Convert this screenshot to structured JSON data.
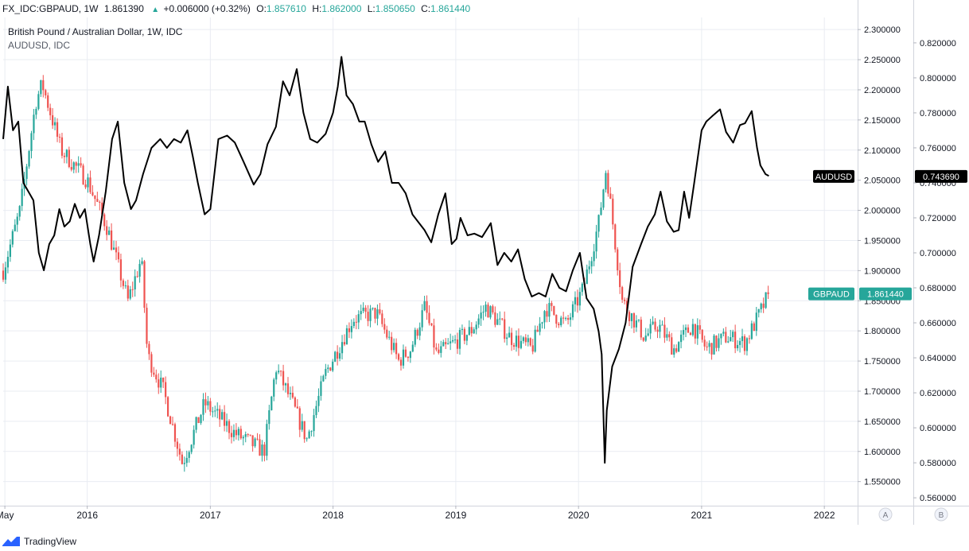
{
  "header": {
    "symbol_line": "FX_IDC:GBPAUD, 1W",
    "last": "1.861390",
    "change": "+0.006000 (+0.32%)",
    "open_label": "O:",
    "open": "1.857610",
    "high_label": "H:",
    "high": "1.862000",
    "low_label": "L:",
    "low": "1.850650",
    "close_label": "C:",
    "close": "1.861440"
  },
  "legend": {
    "main_series": "British Pound / Australian Dollar, 1W, IDC",
    "overlay_series": "AUDUSD, IDC"
  },
  "footer": {
    "brand": "TradingView"
  },
  "scale_buttons": [
    "A",
    "B"
  ],
  "colors": {
    "up": "#26a69a",
    "down": "#ef5350",
    "overlay": "#000000",
    "grid": "#e9ecf2",
    "axis_text": "#131722"
  },
  "chart_data": {
    "type": "candlestick+line",
    "x_ticks": [
      "May",
      "2016",
      "2017",
      "2018",
      "2019",
      "2020",
      "2021",
      "2022"
    ],
    "x_tick_dates": [
      "2015-05-01",
      "2016-01-01",
      "2017-01-01",
      "2018-01-01",
      "2019-01-01",
      "2020-01-01",
      "2021-01-01",
      "2022-01-01"
    ],
    "xlim": [
      "2015-04-26",
      "2022-04-10"
    ],
    "series": [
      {
        "name": "GBPAUD",
        "axis": "left-scale",
        "price_label": "1.861440",
        "ylim": [
          1.51,
          2.32
        ],
        "y_ticks": [
          "2.300000",
          "2.250000",
          "2.200000",
          "2.150000",
          "2.100000",
          "2.050000",
          "2.000000",
          "1.950000",
          "1.900000",
          "1.850000",
          "1.800000",
          "1.750000",
          "1.700000",
          "1.650000",
          "1.600000",
          "1.550000"
        ],
        "y_tick_values": [
          2.3,
          2.25,
          2.2,
          2.15,
          2.1,
          2.05,
          2.0,
          1.95,
          1.9,
          1.85,
          1.8,
          1.75,
          1.7,
          1.65,
          1.6,
          1.55
        ],
        "anchor_dates": [
          "2015-04-26",
          "2015-06-15",
          "2015-08-01",
          "2015-08-20",
          "2015-10-15",
          "2016-01-01",
          "2016-03-01",
          "2016-05-01",
          "2016-06-10",
          "2016-06-28",
          "2016-08-15",
          "2016-10-10",
          "2016-12-15",
          "2017-03-15",
          "2017-06-10",
          "2017-07-15",
          "2017-09-01",
          "2017-10-15",
          "2017-12-10",
          "2018-03-01",
          "2018-05-10",
          "2018-07-15",
          "2018-08-20",
          "2018-10-01",
          "2018-11-05",
          "2018-12-25",
          "2019-02-15",
          "2019-04-01",
          "2019-06-10",
          "2019-08-15",
          "2019-09-25",
          "2019-11-25",
          "2020-01-15",
          "2020-03-01",
          "2020-03-23",
          "2020-05-10",
          "2020-07-15",
          "2020-08-25",
          "2020-10-10",
          "2020-12-05",
          "2021-01-15",
          "2021-03-15",
          "2021-05-10",
          "2021-06-15",
          "2021-07-20"
        ],
        "anchor_values": [
          1.9,
          2.0,
          2.18,
          2.21,
          2.1,
          2.05,
          1.97,
          1.85,
          1.92,
          1.76,
          1.7,
          1.58,
          1.68,
          1.63,
          1.6,
          1.74,
          1.68,
          1.62,
          1.73,
          1.82,
          1.83,
          1.75,
          1.77,
          1.84,
          1.76,
          1.78,
          1.8,
          1.84,
          1.79,
          1.77,
          1.84,
          1.81,
          1.87,
          1.98,
          2.07,
          1.85,
          1.79,
          1.81,
          1.77,
          1.81,
          1.77,
          1.79,
          1.78,
          1.82,
          1.861
        ]
      },
      {
        "name": "AUDUSD",
        "axis": "right-scale",
        "price_label": "0.743690",
        "ylim": [
          0.5555,
          0.8345
        ],
        "y_ticks": [
          "0.820000",
          "0.800000",
          "0.780000",
          "0.760000",
          "0.740000",
          "0.720000",
          "0.700000",
          "0.680000",
          "0.660000",
          "0.640000",
          "0.620000",
          "0.600000",
          "0.580000",
          "0.560000"
        ],
        "y_tick_values": [
          0.82,
          0.8,
          0.78,
          0.76,
          0.74,
          0.72,
          0.7,
          0.68,
          0.66,
          0.64,
          0.62,
          0.6,
          0.58,
          0.56
        ],
        "dates": [
          "2015-04-26",
          "2015-05-10",
          "2015-05-25",
          "2015-06-10",
          "2015-06-25",
          "2015-07-10",
          "2015-07-25",
          "2015-08-10",
          "2015-08-25",
          "2015-09-10",
          "2015-09-25",
          "2015-10-10",
          "2015-10-25",
          "2015-11-10",
          "2015-11-25",
          "2015-12-10",
          "2015-12-25",
          "2016-01-10",
          "2016-01-20",
          "2016-02-05",
          "2016-02-25",
          "2016-03-15",
          "2016-04-01",
          "2016-04-20",
          "2016-05-10",
          "2016-05-25",
          "2016-06-15",
          "2016-07-10",
          "2016-08-05",
          "2016-08-25",
          "2016-09-15",
          "2016-10-05",
          "2016-10-25",
          "2016-11-10",
          "2016-11-25",
          "2016-12-15",
          "2017-01-01",
          "2017-01-25",
          "2017-02-20",
          "2017-03-15",
          "2017-04-10",
          "2017-05-10",
          "2017-05-30",
          "2017-06-20",
          "2017-07-15",
          "2017-08-05",
          "2017-08-25",
          "2017-09-15",
          "2017-10-05",
          "2017-10-25",
          "2017-11-15",
          "2017-12-10",
          "2018-01-01",
          "2018-01-15",
          "2018-01-26",
          "2018-02-10",
          "2018-03-01",
          "2018-03-20",
          "2018-04-05",
          "2018-04-25",
          "2018-05-15",
          "2018-06-05",
          "2018-06-25",
          "2018-07-15",
          "2018-08-05",
          "2018-08-25",
          "2018-09-10",
          "2018-09-30",
          "2018-10-20",
          "2018-11-10",
          "2018-12-01",
          "2018-12-20",
          "2019-01-03",
          "2019-01-15",
          "2019-02-05",
          "2019-02-25",
          "2019-03-20",
          "2019-04-15",
          "2019-05-05",
          "2019-05-25",
          "2019-06-15",
          "2019-07-05",
          "2019-07-25",
          "2019-08-15",
          "2019-09-05",
          "2019-09-25",
          "2019-10-15",
          "2019-11-05",
          "2019-11-25",
          "2019-12-15",
          "2020-01-05",
          "2020-01-25",
          "2020-02-15",
          "2020-03-01",
          "2020-03-10",
          "2020-03-19",
          "2020-03-25",
          "2020-04-10",
          "2020-04-30",
          "2020-05-20",
          "2020-06-10",
          "2020-07-05",
          "2020-07-25",
          "2020-08-15",
          "2020-09-01",
          "2020-09-20",
          "2020-10-10",
          "2020-10-25",
          "2020-11-10",
          "2020-11-25",
          "2020-12-10",
          "2021-01-01",
          "2021-01-15",
          "2021-02-01",
          "2021-02-25",
          "2021-03-15",
          "2021-04-05",
          "2021-04-25",
          "2021-05-10",
          "2021-05-30",
          "2021-06-15",
          "2021-06-25",
          "2021-07-10",
          "2021-07-20"
        ],
        "values": [
          0.765,
          0.795,
          0.77,
          0.775,
          0.74,
          0.735,
          0.73,
          0.7,
          0.69,
          0.705,
          0.71,
          0.725,
          0.715,
          0.718,
          0.728,
          0.72,
          0.725,
          0.705,
          0.695,
          0.71,
          0.735,
          0.765,
          0.775,
          0.74,
          0.725,
          0.73,
          0.745,
          0.76,
          0.765,
          0.76,
          0.765,
          0.763,
          0.77,
          0.755,
          0.74,
          0.722,
          0.725,
          0.765,
          0.767,
          0.763,
          0.752,
          0.739,
          0.745,
          0.762,
          0.772,
          0.798,
          0.79,
          0.805,
          0.78,
          0.765,
          0.763,
          0.768,
          0.78,
          0.795,
          0.812,
          0.79,
          0.785,
          0.775,
          0.775,
          0.762,
          0.752,
          0.758,
          0.74,
          0.74,
          0.734,
          0.722,
          0.718,
          0.713,
          0.706,
          0.722,
          0.734,
          0.705,
          0.708,
          0.72,
          0.71,
          0.711,
          0.709,
          0.717,
          0.693,
          0.7,
          0.695,
          0.702,
          0.685,
          0.675,
          0.677,
          0.675,
          0.688,
          0.68,
          0.678,
          0.69,
          0.7,
          0.674,
          0.668,
          0.655,
          0.642,
          0.58,
          0.61,
          0.635,
          0.645,
          0.66,
          0.692,
          0.705,
          0.715,
          0.722,
          0.735,
          0.718,
          0.712,
          0.713,
          0.735,
          0.72,
          0.74,
          0.77,
          0.775,
          0.778,
          0.782,
          0.769,
          0.763,
          0.773,
          0.774,
          0.781,
          0.76,
          0.75,
          0.745,
          0.744
        ]
      }
    ]
  }
}
